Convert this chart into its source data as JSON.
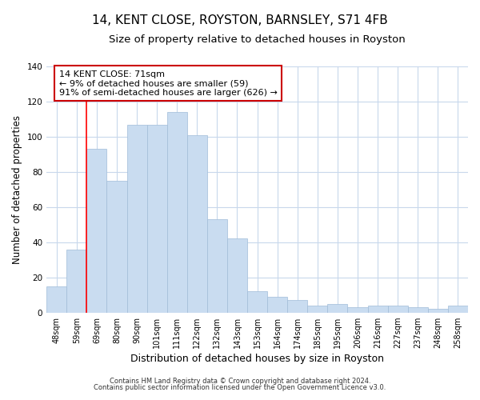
{
  "title": "14, KENT CLOSE, ROYSTON, BARNSLEY, S71 4FB",
  "subtitle": "Size of property relative to detached houses in Royston",
  "xlabel": "Distribution of detached houses by size in Royston",
  "ylabel": "Number of detached properties",
  "categories": [
    "48sqm",
    "59sqm",
    "69sqm",
    "80sqm",
    "90sqm",
    "101sqm",
    "111sqm",
    "122sqm",
    "132sqm",
    "143sqm",
    "153sqm",
    "164sqm",
    "174sqm",
    "185sqm",
    "195sqm",
    "206sqm",
    "216sqm",
    "227sqm",
    "237sqm",
    "248sqm",
    "258sqm"
  ],
  "values": [
    15,
    36,
    93,
    75,
    107,
    107,
    114,
    101,
    53,
    42,
    12,
    9,
    7,
    4,
    5,
    3,
    4,
    4,
    3,
    2,
    4
  ],
  "bar_color": "#c9dcf0",
  "bar_edge_color": "#a0bcd8",
  "red_line_index": 2,
  "annotation_line1": "14 KENT CLOSE: 71sqm",
  "annotation_line2": "← 9% of detached houses are smaller (59)",
  "annotation_line3": "91% of semi-detached houses are larger (626) →",
  "annotation_box_color": "#ffffff",
  "annotation_box_edge_color": "#cc0000",
  "ylim": [
    0,
    140
  ],
  "yticks": [
    0,
    20,
    40,
    60,
    80,
    100,
    120,
    140
  ],
  "footnote1": "Contains HM Land Registry data © Crown copyright and database right 2024.",
  "footnote2": "Contains public sector information licensed under the Open Government Licence v3.0.",
  "background_color": "#ffffff",
  "grid_color": "#c8d8ec",
  "title_fontsize": 11,
  "subtitle_fontsize": 9.5,
  "tick_fontsize": 7,
  "ylabel_fontsize": 8.5,
  "xlabel_fontsize": 9,
  "annotation_fontsize": 8,
  "footnote_fontsize": 6
}
